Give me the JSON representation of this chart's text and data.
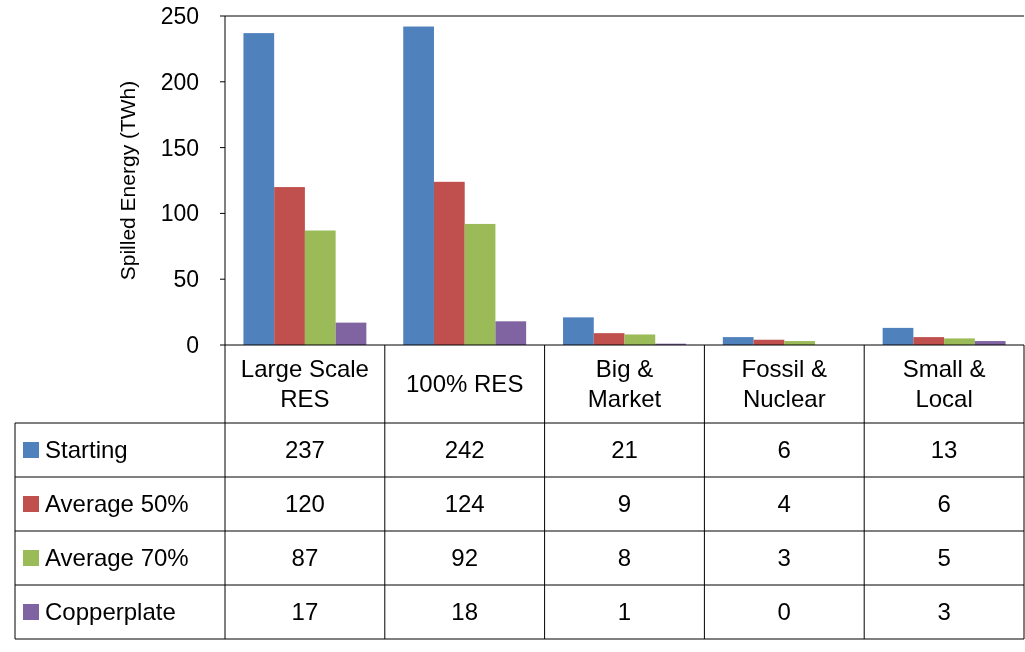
{
  "chart_data": {
    "type": "bar",
    "ylabel": "Spilled Energy (TWh)",
    "categories": [
      "Large Scale RES",
      "100% RES",
      "Big & Market",
      "Fossil & Nuclear",
      "Small & Local"
    ],
    "series": [
      {
        "name": "Starting",
        "color": "#4f81bd",
        "values": [
          237,
          242,
          21,
          6,
          13
        ]
      },
      {
        "name": "Average 50%",
        "color": "#c0504d",
        "values": [
          120,
          124,
          9,
          4,
          6
        ]
      },
      {
        "name": "Average 70%",
        "color": "#9bbb59",
        "values": [
          87,
          92,
          8,
          3,
          5
        ]
      },
      {
        "name": "Copperplate",
        "color": "#8064a2",
        "values": [
          17,
          18,
          1,
          0,
          3
        ]
      }
    ],
    "ylim": [
      0,
      250
    ],
    "yticks": [
      0,
      50,
      100,
      150,
      200,
      250
    ],
    "grid": false,
    "legend": "bottom",
    "data_labels": true
  }
}
